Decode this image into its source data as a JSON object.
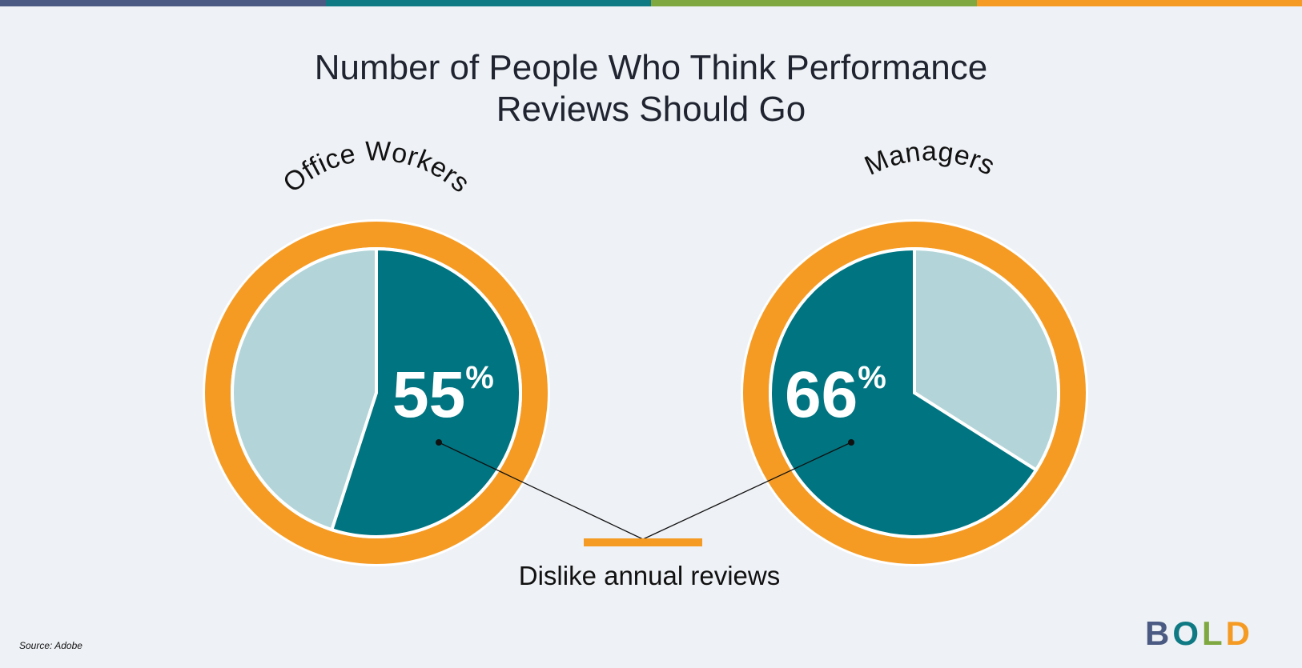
{
  "colors": {
    "top_bar": [
      "#4a5a82",
      "#0f7a84",
      "#7fa840",
      "#f59b24"
    ],
    "ring": "#f59b24",
    "highlight_slice": "#007480",
    "rest_slice": "#b3d5d9",
    "background": "#eef1f5"
  },
  "chart_data": {
    "type": "pie",
    "title": [
      "Number of People Who Think Performance",
      "Reviews Should Go"
    ],
    "charts": [
      {
        "name": "Office Workers",
        "value": 55,
        "label": "55%",
        "slices": [
          {
            "label": "Dislike annual reviews",
            "value": 55
          },
          {
            "label": "",
            "value": 45
          }
        ]
      },
      {
        "name": "Managers",
        "value": 66,
        "label": "66%",
        "slices": [
          {
            "label": "Dislike annual reviews",
            "value": 66
          },
          {
            "label": "",
            "value": 34
          }
        ]
      }
    ],
    "annotation": "Dislike annual reviews"
  },
  "source": "Source: Adobe",
  "logo": {
    "letters": [
      "B",
      "O",
      "L",
      "D"
    ],
    "colors": [
      "#4a5a82",
      "#0f7a84",
      "#7fa840",
      "#f59b24"
    ]
  }
}
